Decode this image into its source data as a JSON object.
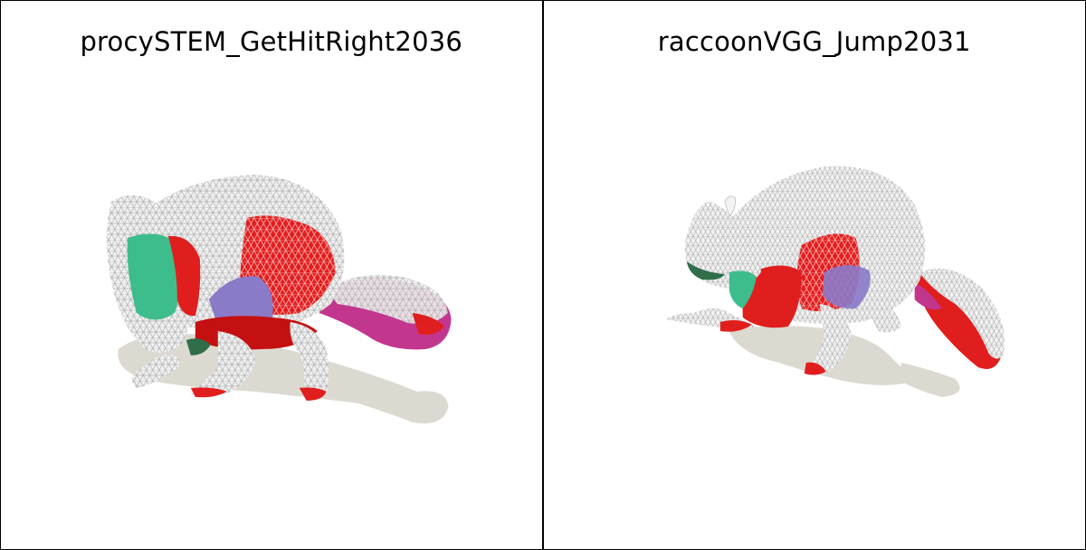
{
  "panels": [
    {
      "title": "procySTEM_GetHitRight2036",
      "model": "raccoon-mesh-icon"
    },
    {
      "title": "raccoonVGG_Jump2031",
      "model": "raccoon-mesh-icon"
    }
  ],
  "colors": {
    "background": "#ffffff",
    "border": "#000000",
    "shadow": "#dcd9d1",
    "mesh_white": "#f2f2f2",
    "wire": "#b4b4b4",
    "region_red": "#e01e1e",
    "region_purple": "#8a7ac8",
    "region_magenta": "#c2368e",
    "region_green": "#3dbd8c",
    "region_darkgreen": "#2f6e49"
  }
}
